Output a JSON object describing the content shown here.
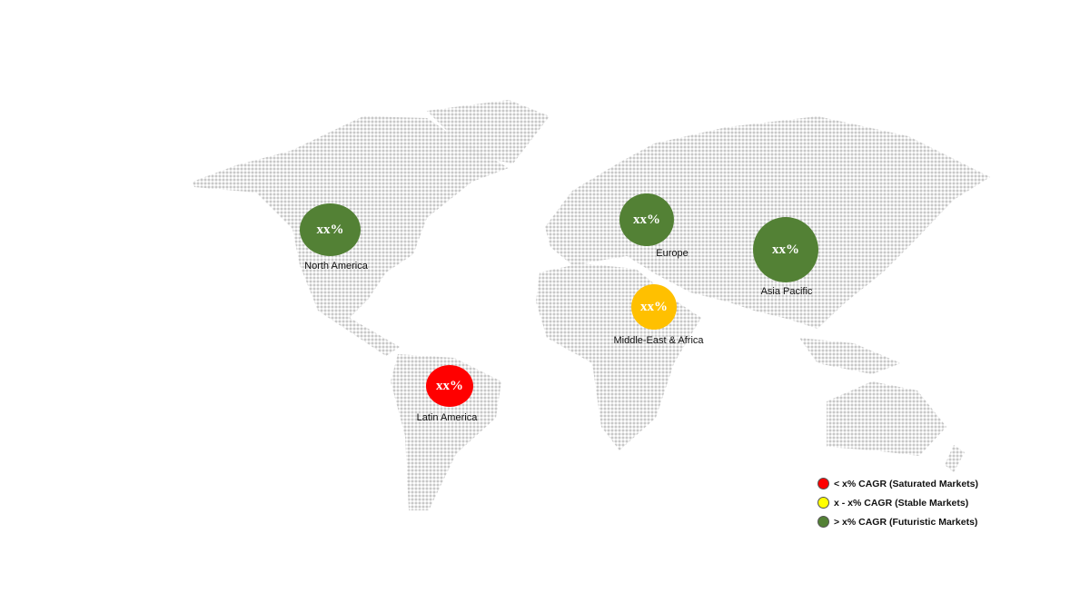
{
  "regions": [
    {
      "name": "North America",
      "value": "xx%",
      "status": "futuristic",
      "color": "#538135"
    },
    {
      "name": "Europe",
      "value": "xx%",
      "status": "futuristic",
      "color": "#538135"
    },
    {
      "name": "Asia Pacific",
      "value": "xx%",
      "status": "futuristic",
      "color": "#538135"
    },
    {
      "name": "Middle-East & Africa",
      "value": "xx%",
      "status": "stable",
      "color": "#FFC000"
    },
    {
      "name": "Latin America",
      "value": "xx%",
      "status": "saturated",
      "color": "#FF0000"
    }
  ],
  "legend": [
    {
      "label": "< x% CAGR (Saturated Markets)",
      "color": "#FF0000"
    },
    {
      "label": "x - x% CAGR (Stable Markets)",
      "color": "#FFFF00"
    },
    {
      "label": "> x% CAGR (Futuristic Markets)",
      "color": "#538135"
    }
  ],
  "map_dot_color": "#c8c8c8"
}
